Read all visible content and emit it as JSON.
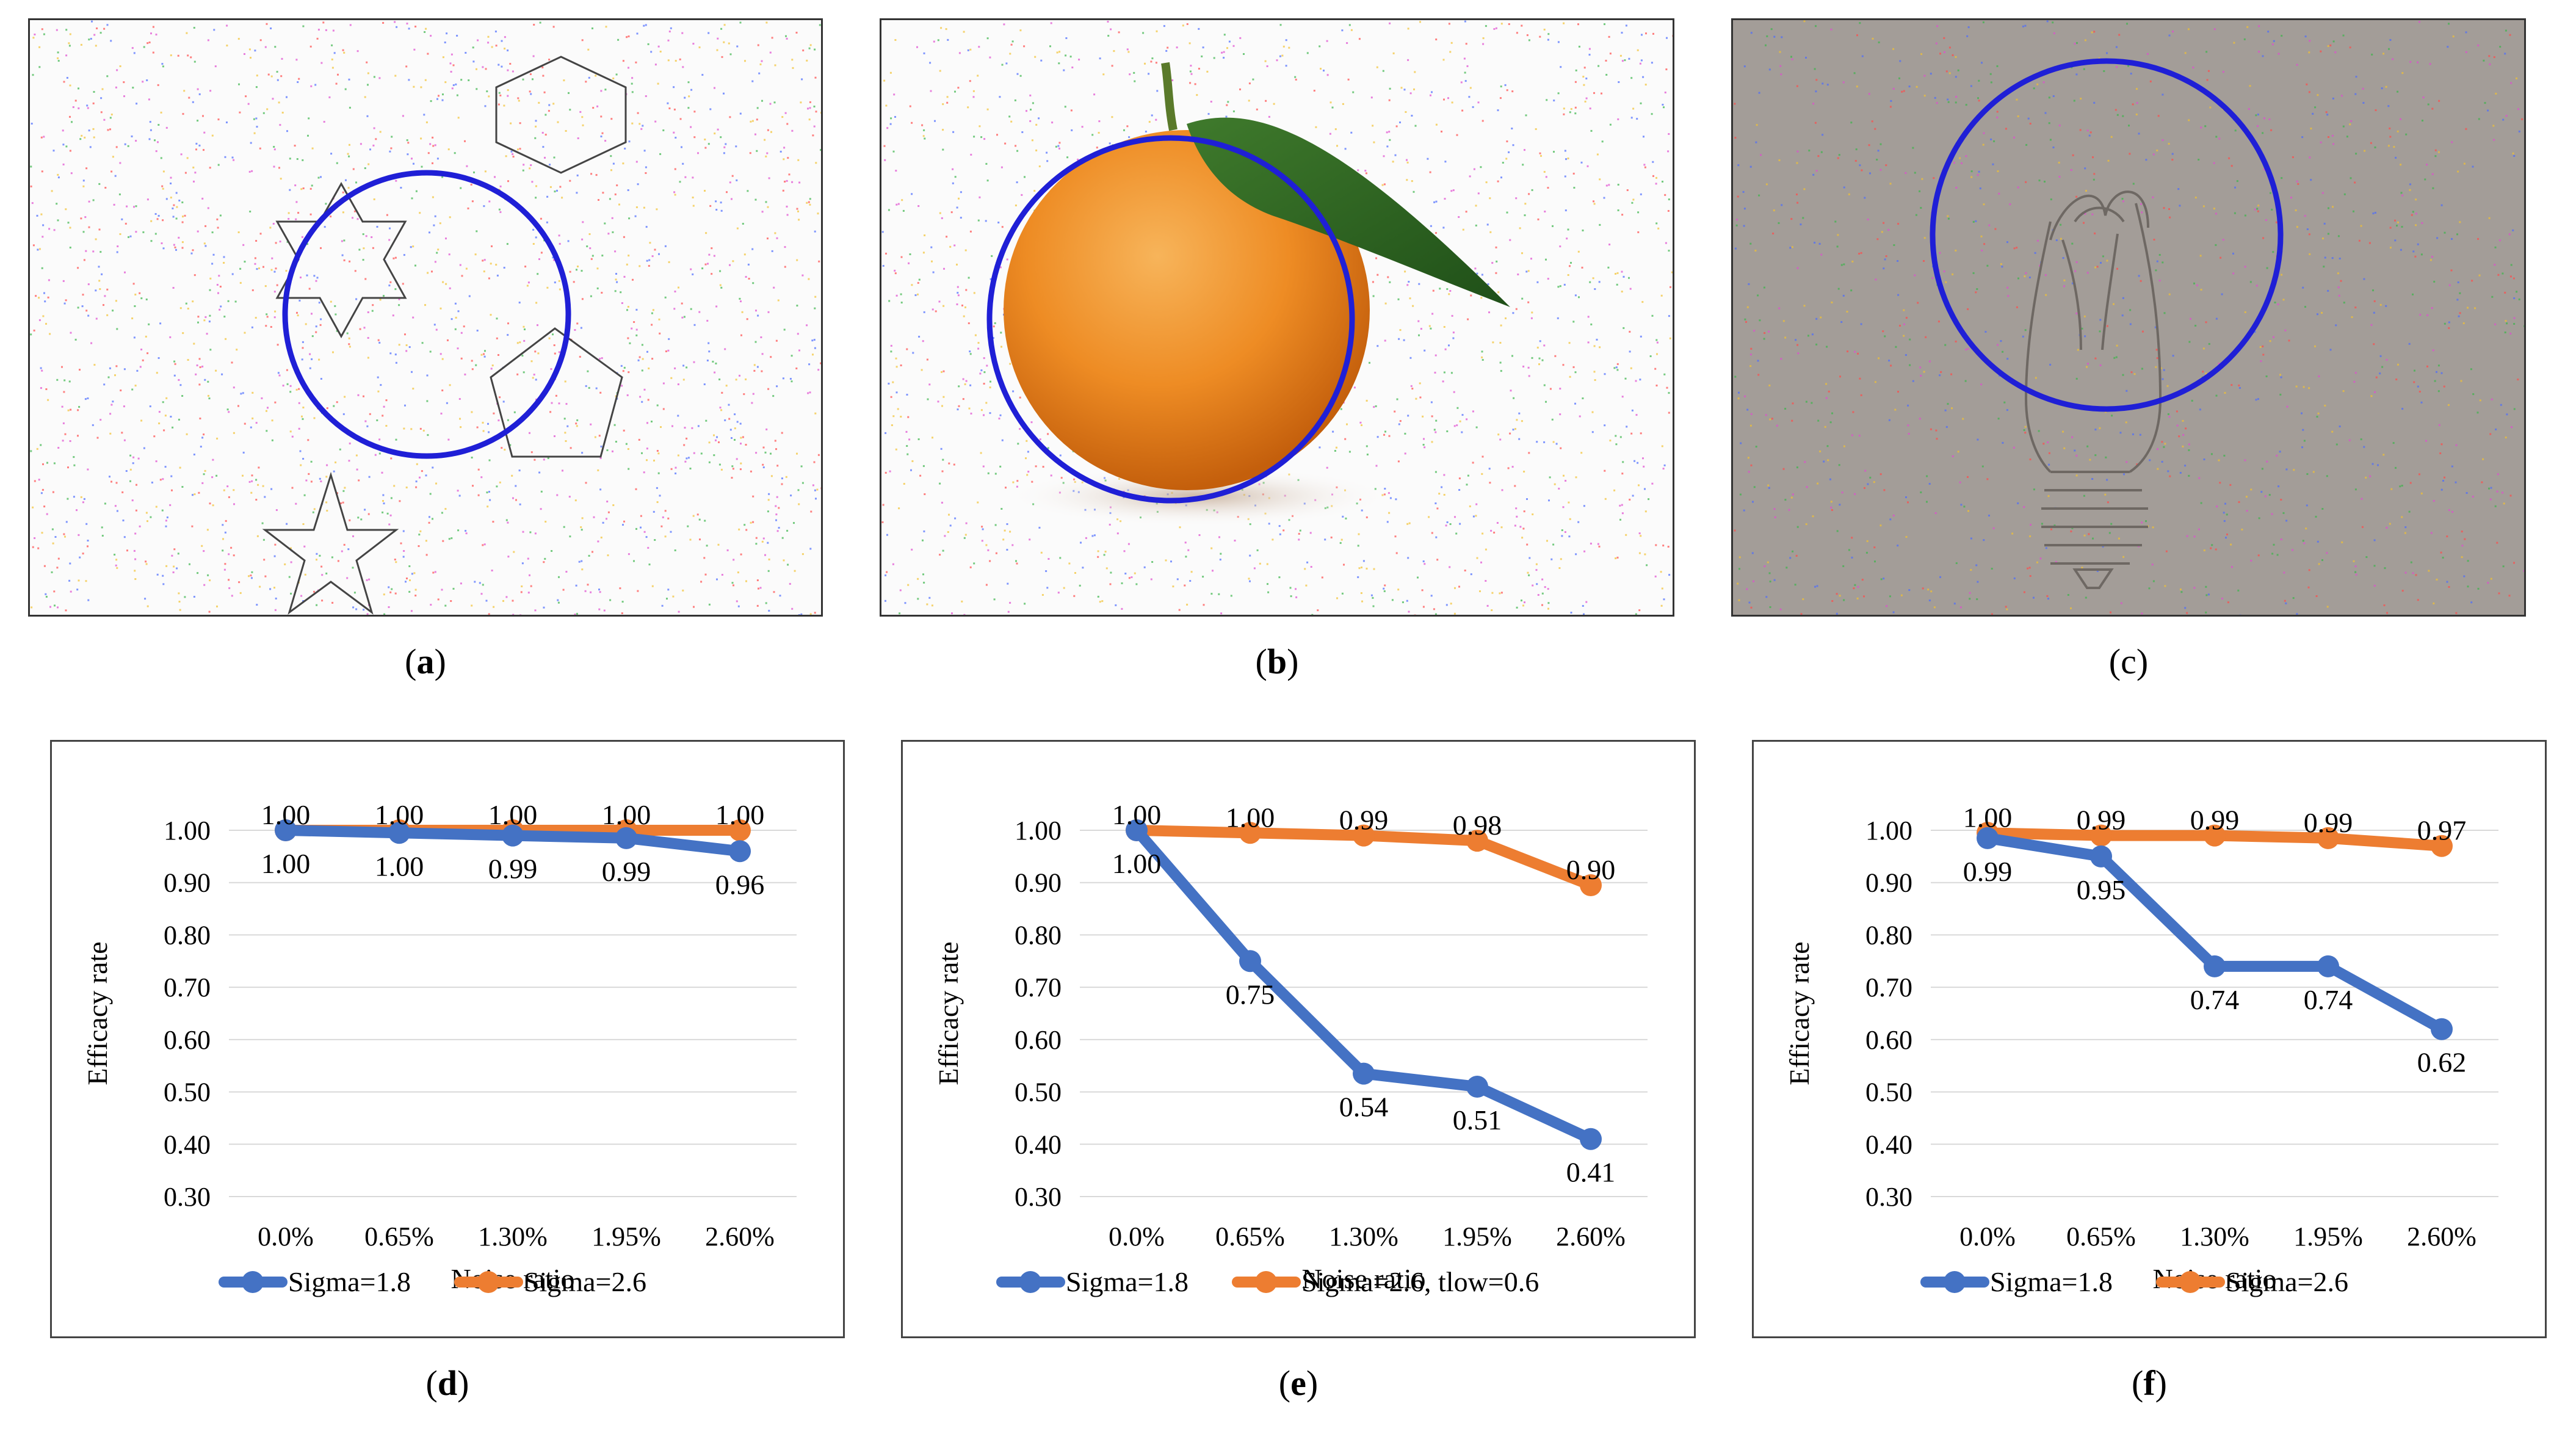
{
  "captions": {
    "a": "a",
    "b": "b",
    "c": "c",
    "d": "d",
    "e": "e",
    "f": "f"
  },
  "colors": {
    "series1": "#4472c4",
    "series2": "#ed7d31",
    "circle": "#1f1fd6"
  },
  "chart_data": [
    {
      "type": "line",
      "panel": "d",
      "categories": [
        "0.0%",
        "0.65%",
        "1.30%",
        "1.95%",
        "2.60%"
      ],
      "xlabel": "Noise ratio",
      "ylabel": "Efficacy rate",
      "ylim": [
        0.3,
        1.0
      ],
      "yticks": [
        "1.00",
        "0.90",
        "0.80",
        "0.70",
        "0.60",
        "0.50",
        "0.40",
        "0.30"
      ],
      "grid": true,
      "legend": "bottom",
      "series": [
        {
          "name": "Sigma=1.8",
          "color": "#4472c4",
          "values": [
            1.0,
            0.995,
            0.99,
            0.985,
            0.96
          ],
          "labels": [
            "1.00",
            "1.00",
            "0.99",
            "0.99",
            "0.96"
          ]
        },
        {
          "name": "Sigma=2.6",
          "color": "#ed7d31",
          "values": [
            1.0,
            1.0,
            1.0,
            1.0,
            1.0
          ],
          "labels": [
            "1.00",
            "1.00",
            "1.00",
            "1.00",
            "1.00"
          ]
        }
      ]
    },
    {
      "type": "line",
      "panel": "e",
      "categories": [
        "0.0%",
        "0.65%",
        "1.30%",
        "1.95%",
        "2.60%"
      ],
      "xlabel": "Noise ratio",
      "ylabel": "Efficacy rate",
      "ylim": [
        0.3,
        1.0
      ],
      "yticks": [
        "1.00",
        "0.90",
        "0.80",
        "0.70",
        "0.60",
        "0.50",
        "0.40",
        "0.30"
      ],
      "grid": true,
      "legend": "bottom",
      "series": [
        {
          "name": "Sigma=1.8",
          "color": "#4472c4",
          "values": [
            1.0,
            0.75,
            0.535,
            0.51,
            0.41
          ],
          "labels": [
            "1.00",
            "0.75",
            "0.54",
            "0.51",
            "0.41"
          ]
        },
        {
          "name": "Sigma=2.6, tlow=0.6",
          "color": "#ed7d31",
          "values": [
            1.0,
            0.995,
            0.99,
            0.98,
            0.895
          ],
          "labels": [
            "1.00",
            "1.00",
            "0.99",
            "0.98",
            "0.90"
          ]
        }
      ]
    },
    {
      "type": "line",
      "panel": "f",
      "categories": [
        "0.0%",
        "0.65%",
        "1.30%",
        "1.95%",
        "2.60%"
      ],
      "xlabel": "Noise ratio",
      "ylabel": "Efficacy rate",
      "ylim": [
        0.3,
        1.0
      ],
      "yticks": [
        "1.00",
        "0.90",
        "0.80",
        "0.70",
        "0.60",
        "0.50",
        "0.40",
        "0.30"
      ],
      "grid": true,
      "legend": "bottom",
      "series": [
        {
          "name": "Sigma=1.8",
          "color": "#4472c4",
          "values": [
            0.985,
            0.95,
            0.74,
            0.74,
            0.62
          ],
          "labels": [
            "0.99",
            "0.95",
            "0.74",
            "0.74",
            "0.62"
          ]
        },
        {
          "name": "Sigma=2.6",
          "color": "#ed7d31",
          "values": [
            0.995,
            0.99,
            0.99,
            0.985,
            0.97
          ],
          "labels": [
            "1.00",
            "0.99",
            "0.99",
            "0.99",
            "0.97"
          ]
        }
      ]
    }
  ]
}
